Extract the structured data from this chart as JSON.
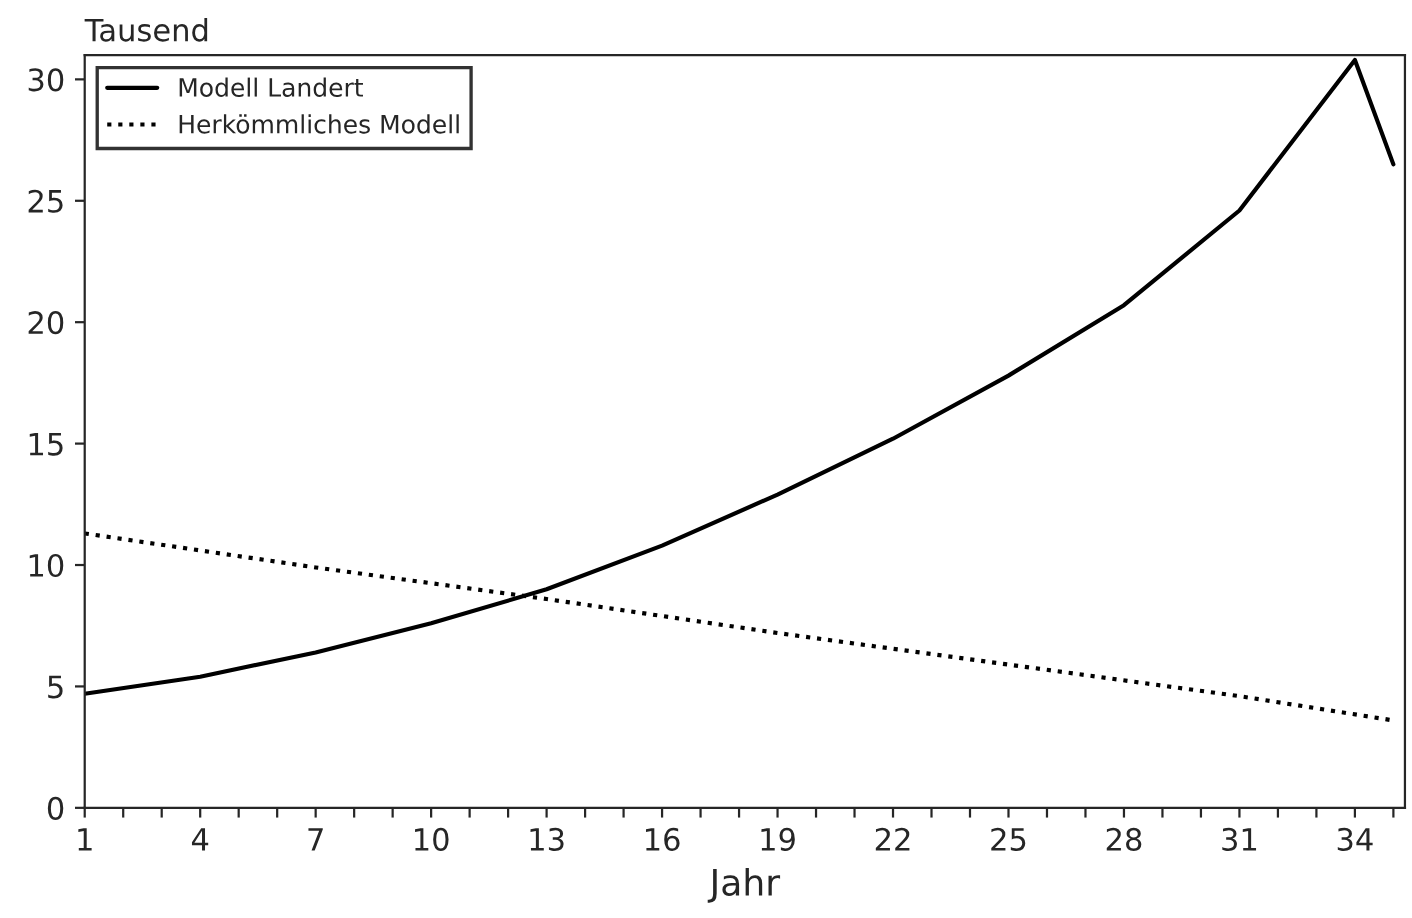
{
  "chart_data": {
    "type": "line",
    "xlabel": "Jahr",
    "ylabel": "Tausend",
    "series": [
      {
        "name": "Modell Landert",
        "color": "#000000",
        "line_style": "solid",
        "x": [
          1,
          4,
          7,
          10,
          13,
          16,
          19,
          22,
          25,
          28,
          31,
          34,
          35
        ],
        "values": [
          4.7,
          5.4,
          6.4,
          7.6,
          9.0,
          10.8,
          12.9,
          15.2,
          17.8,
          20.7,
          24.6,
          30.8,
          26.5
        ]
      },
      {
        "name": "Herkömmliches Modell",
        "color": "#000000",
        "line_style": "dotted",
        "x": [
          1,
          7,
          13,
          19,
          25,
          31,
          35
        ],
        "values": [
          11.3,
          9.9,
          8.6,
          7.2,
          5.9,
          4.6,
          3.6
        ]
      }
    ],
    "xlim": [
      1,
      35.3
    ],
    "ylim": [
      0,
      31
    ],
    "xticks": [
      1,
      {
        "value": 2,
        "label": null
      },
      {
        "value": 3,
        "label": null
      },
      4,
      {
        "value": 5,
        "label": null
      },
      {
        "value": 6,
        "label": null
      },
      7,
      {
        "value": 8,
        "label": null
      },
      {
        "value": 9,
        "label": null
      },
      10,
      {
        "value": 11,
        "label": null
      },
      {
        "value": 12,
        "label": null
      },
      13,
      {
        "value": 14,
        "label": null
      },
      {
        "value": 15,
        "label": null
      },
      16,
      {
        "value": 17,
        "label": null
      },
      {
        "value": 18,
        "label": null
      },
      19,
      {
        "value": 20,
        "label": null
      },
      {
        "value": 21,
        "label": null
      },
      22,
      {
        "value": 23,
        "label": null
      },
      {
        "value": 24,
        "label": null
      },
      25,
      {
        "value": 26,
        "label": null
      },
      {
        "value": 27,
        "label": null
      },
      28,
      {
        "value": 29,
        "label": null
      },
      {
        "value": 30,
        "label": null
      },
      31,
      {
        "value": 32,
        "label": null
      },
      {
        "value": 33,
        "label": null
      },
      34,
      {
        "value": 35,
        "label": null
      }
    ],
    "yticks": [
      0,
      5,
      10,
      15,
      20,
      25,
      30
    ],
    "grid": false,
    "legend": "top left",
    "marker": "none"
  }
}
